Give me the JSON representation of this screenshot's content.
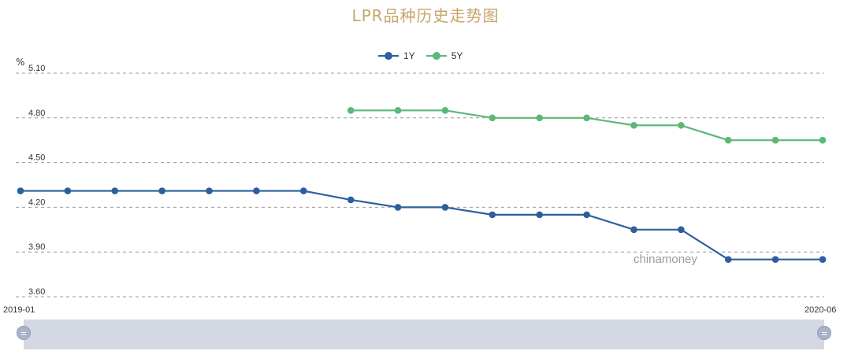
{
  "title": "LPR品种历史走势图",
  "y_unit": "%",
  "watermark": "chinamoney",
  "slider": {
    "start_label": "2019-01",
    "end_label": "2020-06"
  },
  "colors": {
    "series_1y": "#2c5f9e",
    "series_5y": "#5cb87a",
    "title": "#c9a46b",
    "grid": "#999999"
  },
  "chart_data": {
    "type": "line",
    "title": "LPR品种历史走势图",
    "ylabel": "%",
    "ylim": [
      3.6,
      5.1
    ],
    "yticks": [
      "5.10",
      "4.80",
      "4.50",
      "4.20",
      "3.90",
      "3.60"
    ],
    "grid": true,
    "legend_position": "top-center",
    "x": [
      "2019-01",
      "2019-02",
      "2019-03",
      "2019-04",
      "2019-05",
      "2019-06",
      "2019-07",
      "2019-08",
      "2019-09",
      "2019-10",
      "2019-11",
      "2019-12",
      "2020-01",
      "2020-02",
      "2020-03",
      "2020-04",
      "2020-05",
      "2020-06"
    ],
    "series": [
      {
        "name": "1Y",
        "values": [
          4.31,
          4.31,
          4.31,
          4.31,
          4.31,
          4.31,
          4.31,
          4.25,
          4.2,
          4.2,
          4.15,
          4.15,
          4.15,
          4.05,
          4.05,
          3.85,
          3.85,
          3.85
        ]
      },
      {
        "name": "5Y",
        "values": [
          null,
          null,
          null,
          null,
          null,
          null,
          null,
          4.85,
          4.85,
          4.85,
          4.8,
          4.8,
          4.8,
          4.75,
          4.75,
          4.65,
          4.65,
          4.65
        ]
      }
    ]
  }
}
